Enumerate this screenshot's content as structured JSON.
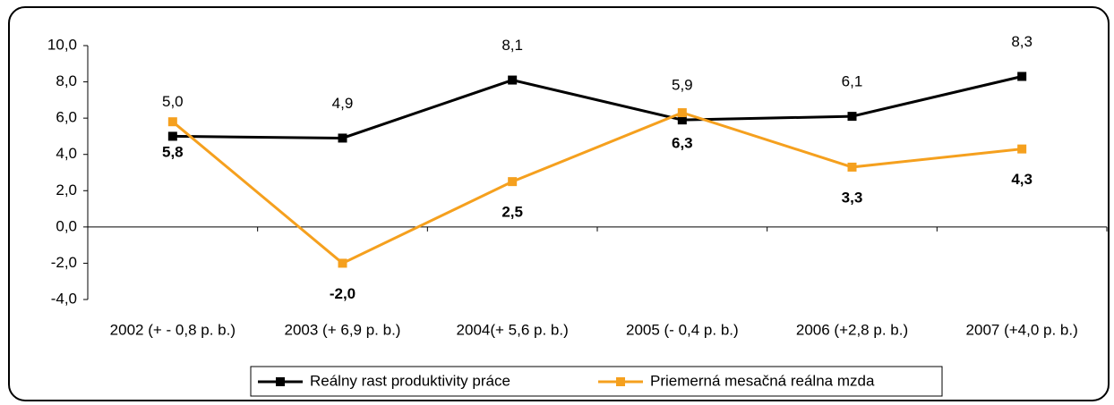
{
  "chart_data": {
    "type": "line",
    "categories": [
      "2002 (+ - 0,8 p. b.)",
      "2003 (+ 6,9 p. b.)",
      "2004(+ 5,6 p. b.)",
      "2005 (- 0,4 p. b.)",
      "2006 (+2,8 p. b.)",
      "2007 (+4,0 p. b.)"
    ],
    "series": [
      {
        "name": "Reálny rast produktivity práce",
        "color": "#000000",
        "values": [
          5.0,
          4.9,
          8.1,
          5.9,
          6.1,
          8.3
        ],
        "value_labels": [
          "5,0",
          "4,9",
          "8,1",
          "5,9",
          "6,1",
          "8,3"
        ]
      },
      {
        "name": "Priemerná mesačná reálna mzda",
        "color": "#f5a01e",
        "values": [
          5.8,
          -2.0,
          2.5,
          6.3,
          3.3,
          4.3
        ],
        "value_labels": [
          "5,8",
          "-2,0",
          "2,5",
          "6,3",
          "3,3",
          "4,3"
        ]
      }
    ],
    "ylim": [
      -4,
      10
    ],
    "yticks": [
      {
        "value": -4,
        "label": "-4,0"
      },
      {
        "value": -2,
        "label": "-2,0"
      },
      {
        "value": 0,
        "label": "0,0"
      },
      {
        "value": 2,
        "label": "2,0"
      },
      {
        "value": 4,
        "label": "4,0"
      },
      {
        "value": 6,
        "label": "6,0"
      },
      {
        "value": 8,
        "label": "8,0"
      },
      {
        "value": 10,
        "label": "10,0"
      }
    ],
    "legend": "bottom"
  }
}
